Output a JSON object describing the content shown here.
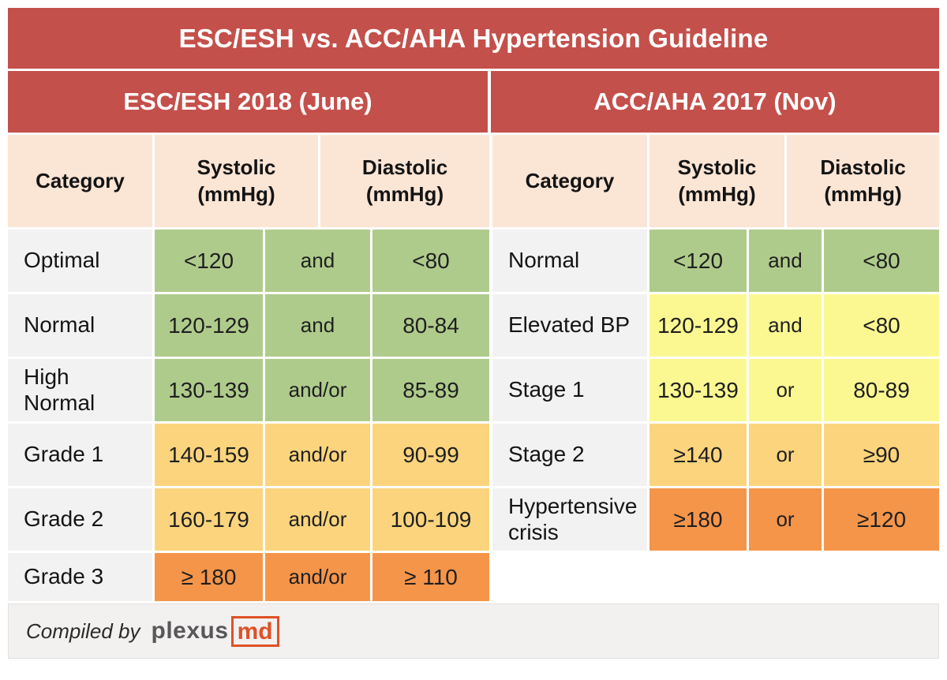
{
  "title": "ESC/ESH vs. ACC/AHA Hypertension Guideline",
  "left_table": {
    "header": "ESC/ESH 2018 (June)",
    "columns": {
      "category": "Category",
      "systolic": {
        "line1": "Systolic",
        "line2": "(mmHg)"
      },
      "diastolic": {
        "line1": "Diastolic",
        "line2": "(mmHg)"
      }
    },
    "rows": [
      {
        "category": "Optimal",
        "systolic": "<120",
        "conjunction": "and",
        "diastolic": "<80",
        "severity": "green"
      },
      {
        "category": "Normal",
        "systolic": "120-129",
        "conjunction": "and",
        "diastolic": "80-84",
        "severity": "green"
      },
      {
        "category": "High\nNormal",
        "systolic": "130-139",
        "conjunction": "and/or",
        "diastolic": "85-89",
        "severity": "green"
      },
      {
        "category": "Grade 1",
        "systolic": "140-159",
        "conjunction": "and/or",
        "diastolic": "90-99",
        "severity": "amber"
      },
      {
        "category": "Grade 2",
        "systolic": "160-179",
        "conjunction": "and/or",
        "diastolic": "100-109",
        "severity": "amber"
      },
      {
        "category": "Grade 3",
        "systolic": "≥ 180",
        "conjunction": "and/or",
        "diastolic": "≥ 110",
        "severity": "orange"
      }
    ]
  },
  "right_table": {
    "header": "ACC/AHA  2017 (Nov)",
    "columns": {
      "category": "Category",
      "systolic": {
        "line1": "Systolic",
        "line2": "(mmHg)"
      },
      "diastolic": {
        "line1": "Diastolic",
        "line2": "(mmHg)"
      }
    },
    "rows": [
      {
        "category": "Normal",
        "systolic": "<120",
        "conjunction": "and",
        "diastolic": "<80",
        "severity": "green"
      },
      {
        "category": "Elevated BP",
        "systolic": "120-129",
        "conjunction": "and",
        "diastolic": "<80",
        "severity": "yellow"
      },
      {
        "category": "Stage 1",
        "systolic": "130-139",
        "conjunction": "or",
        "diastolic": "80-89",
        "severity": "yellow"
      },
      {
        "category": "Stage 2",
        "systolic": "≥140",
        "conjunction": "or",
        "diastolic": "≥90",
        "severity": "amber"
      },
      {
        "category": "Hypertensive\ncrisis",
        "systolic": "≥180",
        "conjunction": "or",
        "diastolic": "≥120",
        "severity": "orange"
      }
    ]
  },
  "footer": {
    "compiled_by": "Compiled by",
    "logo_plexus": "plexus",
    "logo_md": "md"
  },
  "colors": {
    "header_red": "#C4504B",
    "subheader_peach": "#FBE5D5",
    "category_gray": "#F2F2F2",
    "severity_green": "#AFCB8C",
    "severity_yellow": "#FBF892",
    "severity_amber": "#FBD47D",
    "severity_orange": "#F5954A",
    "footer_gray": "#F2F1EF",
    "logo_gray": "#58585A",
    "logo_orange": "#DF5127"
  }
}
